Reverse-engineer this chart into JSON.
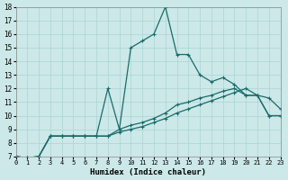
{
  "xlabel": "Humidex (Indice chaleur)",
  "bg_color": "#cce8e8",
  "line_color": "#1a6b6b",
  "xlim": [
    0,
    23
  ],
  "ylim": [
    7,
    18
  ],
  "xticks": [
    0,
    1,
    2,
    3,
    4,
    5,
    6,
    7,
    8,
    9,
    10,
    11,
    12,
    13,
    14,
    15,
    16,
    17,
    18,
    19,
    20,
    21,
    22,
    23
  ],
  "yticks": [
    7,
    8,
    9,
    10,
    11,
    12,
    13,
    14,
    15,
    16,
    17,
    18
  ],
  "grid_color": "#aad4d4",
  "line1_x": [
    0,
    1,
    2,
    3,
    4,
    5,
    6,
    7,
    8,
    9,
    10,
    11,
    12,
    13,
    14,
    15,
    16,
    17,
    18,
    19,
    20,
    21,
    22,
    23
  ],
  "line1_y": [
    7.0,
    6.9,
    7.0,
    8.5,
    8.5,
    8.5,
    8.5,
    8.5,
    8.5,
    8.8,
    9.0,
    9.2,
    9.5,
    9.8,
    10.2,
    10.5,
    10.8,
    11.1,
    11.4,
    11.7,
    12.0,
    11.5,
    10.0,
    10.0
  ],
  "line2_x": [
    0,
    1,
    2,
    3,
    4,
    5,
    6,
    7,
    8,
    9,
    10,
    11,
    12,
    13,
    14,
    15,
    16,
    17,
    18,
    19,
    20,
    21,
    22,
    23
  ],
  "line2_y": [
    7.0,
    6.9,
    7.0,
    8.5,
    8.5,
    8.5,
    8.5,
    8.5,
    8.5,
    9.0,
    9.3,
    9.5,
    9.8,
    10.2,
    10.8,
    11.0,
    11.3,
    11.5,
    11.8,
    12.0,
    11.5,
    11.5,
    11.3,
    10.5
  ],
  "line3_x": [
    0,
    1,
    2,
    3,
    4,
    5,
    6,
    7,
    8,
    9,
    10,
    11,
    12,
    13,
    14,
    15,
    16,
    17,
    18,
    19,
    20,
    21,
    22,
    23
  ],
  "line3_y": [
    7.0,
    6.9,
    7.0,
    8.5,
    8.5,
    8.5,
    8.5,
    8.5,
    12.0,
    9.0,
    15.0,
    15.5,
    16.0,
    18.0,
    14.5,
    14.5,
    13.0,
    12.5,
    12.8,
    12.3,
    11.5,
    11.5,
    10.0,
    10.0
  ]
}
